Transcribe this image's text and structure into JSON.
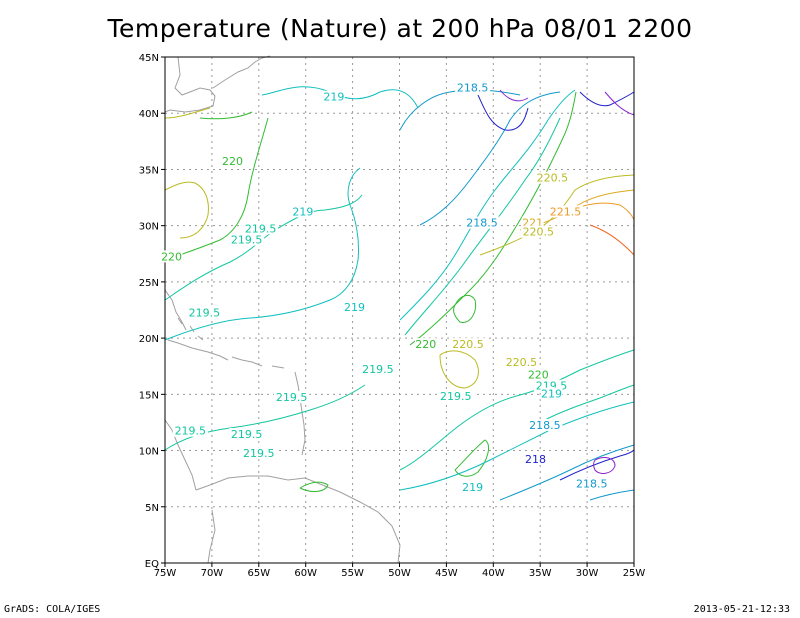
{
  "title": "Temperature (Nature) at 200 hPa 08/01 2200",
  "footer_left": "GrADS: COLA/IGES",
  "footer_right": "2013-05-21-12:33",
  "chart_data": {
    "type": "contour-map",
    "title": "Temperature (Nature) at 200 hPa 08/01 2200",
    "lon_range": [
      -75,
      -25
    ],
    "lat_range": [
      0,
      45
    ],
    "x_ticks": [
      "75W",
      "70W",
      "65W",
      "60W",
      "55W",
      "50W",
      "45W",
      "40W",
      "35W",
      "30W",
      "25W"
    ],
    "y_ticks": [
      "EQ",
      "5N",
      "10N",
      "15N",
      "20N",
      "25N",
      "30N",
      "35N",
      "40N",
      "45N"
    ],
    "grid": "dotted",
    "contour_levels": [
      217,
      217.5,
      218,
      218.5,
      219,
      219.5,
      220,
      220.5,
      221,
      221.5,
      222
    ],
    "contour_labels": [
      {
        "text": "219",
        "lon": -57.0,
        "lat": 41.2,
        "color": "#11bfbf"
      },
      {
        "text": "218.5",
        "lon": -42.2,
        "lat": 42.0,
        "color": "#1199cc"
      },
      {
        "text": "220",
        "lon": -67.8,
        "lat": 35.5,
        "color": "#33bb33"
      },
      {
        "text": "220.5",
        "lon": -33.7,
        "lat": 34.0,
        "color": "#bbbb22"
      },
      {
        "text": "219",
        "lon": -60.3,
        "lat": 31.0,
        "color": "#11bfbf"
      },
      {
        "text": "218.5",
        "lon": -41.2,
        "lat": 30.0,
        "color": "#1199cc"
      },
      {
        "text": "221.5",
        "lon": -32.3,
        "lat": 31.0,
        "color": "#ee9922"
      },
      {
        "text": "221",
        "lon": -35.8,
        "lat": 30.0,
        "color": "#ddaa22"
      },
      {
        "text": "219.5",
        "lon": -64.8,
        "lat": 29.5,
        "color": "#11c6a0"
      },
      {
        "text": "220.5",
        "lon": -35.2,
        "lat": 29.2,
        "color": "#bbbb22"
      },
      {
        "text": "219.5",
        "lon": -66.3,
        "lat": 28.5,
        "color": "#11c6a0"
      },
      {
        "text": "220",
        "lon": -74.3,
        "lat": 27.0,
        "color": "#33bb33"
      },
      {
        "text": "219",
        "lon": -54.8,
        "lat": 22.5,
        "color": "#11bfbf"
      },
      {
        "text": "219.5",
        "lon": -70.8,
        "lat": 22.0,
        "color": "#11c6a0"
      },
      {
        "text": "220",
        "lon": -47.2,
        "lat": 19.2,
        "color": "#33bb33"
      },
      {
        "text": "220.5",
        "lon": -42.7,
        "lat": 19.2,
        "color": "#bbbb22"
      },
      {
        "text": "220.5",
        "lon": -37.0,
        "lat": 17.6,
        "color": "#bbbb22"
      },
      {
        "text": "220",
        "lon": -35.2,
        "lat": 16.5,
        "color": "#33bb33"
      },
      {
        "text": "219.5",
        "lon": -52.3,
        "lat": 17.0,
        "color": "#11c6a0"
      },
      {
        "text": "219.5",
        "lon": -33.8,
        "lat": 15.5,
        "color": "#11c6a0"
      },
      {
        "text": "219",
        "lon": -33.8,
        "lat": 14.8,
        "color": "#11bfbf"
      },
      {
        "text": "219.5",
        "lon": -61.5,
        "lat": 14.5,
        "color": "#11c6a0"
      },
      {
        "text": "219.5",
        "lon": -44.0,
        "lat": 14.6,
        "color": "#11c6a0"
      },
      {
        "text": "218.5",
        "lon": -34.5,
        "lat": 12.0,
        "color": "#1199cc"
      },
      {
        "text": "219.5",
        "lon": -72.3,
        "lat": 11.5,
        "color": "#11c6a0"
      },
      {
        "text": "219.5",
        "lon": -66.3,
        "lat": 11.2,
        "color": "#11c6a0"
      },
      {
        "text": "219.5",
        "lon": -65.0,
        "lat": 9.5,
        "color": "#11c6a0"
      },
      {
        "text": "218",
        "lon": -35.5,
        "lat": 9.0,
        "color": "#2222cc"
      },
      {
        "text": "219",
        "lon": -42.2,
        "lat": 6.5,
        "color": "#11bfbf"
      },
      {
        "text": "218.5",
        "lon": -29.5,
        "lat": 6.8,
        "color": "#1199cc"
      }
    ]
  }
}
